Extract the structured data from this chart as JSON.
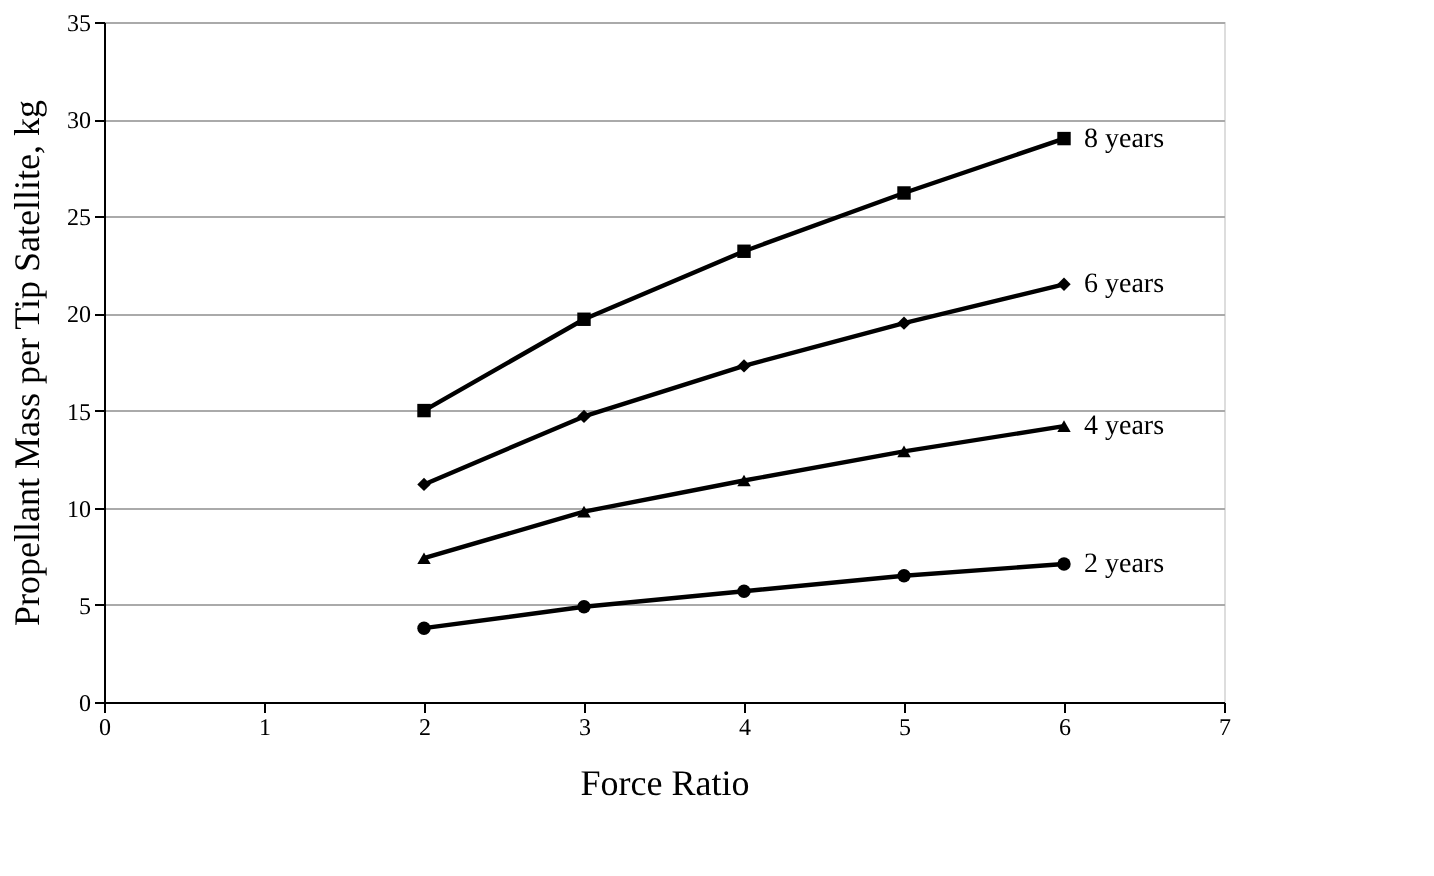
{
  "chart_data": {
    "type": "line",
    "xlabel": "Force Ratio",
    "ylabel": "Propellant Mass per Tip Satellite, kg",
    "x": [
      2,
      3,
      4,
      5,
      6
    ],
    "series": [
      {
        "name": "2 years",
        "color": "#000000",
        "marker": "circle",
        "values": [
          3.8,
          4.9,
          5.7,
          6.5,
          7.1
        ]
      },
      {
        "name": "4 years",
        "color": "#000000",
        "marker": "triangle",
        "values": [
          7.4,
          9.8,
          11.4,
          12.9,
          14.2
        ]
      },
      {
        "name": "6 years",
        "color": "#000000",
        "marker": "diamond",
        "values": [
          11.2,
          14.7,
          17.3,
          19.5,
          21.5
        ]
      },
      {
        "name": "8 years",
        "color": "#000000",
        "marker": "square",
        "values": [
          15.0,
          19.7,
          23.2,
          26.2,
          29.0
        ]
      }
    ],
    "xlim": [
      0,
      7
    ],
    "xticks": [
      0,
      1,
      2,
      3,
      4,
      5,
      6,
      7
    ],
    "ylim": [
      0,
      35
    ],
    "yticks": [
      0,
      5,
      10,
      15,
      20,
      25,
      30,
      35
    ],
    "grid": "y",
    "line_style": "solid"
  }
}
